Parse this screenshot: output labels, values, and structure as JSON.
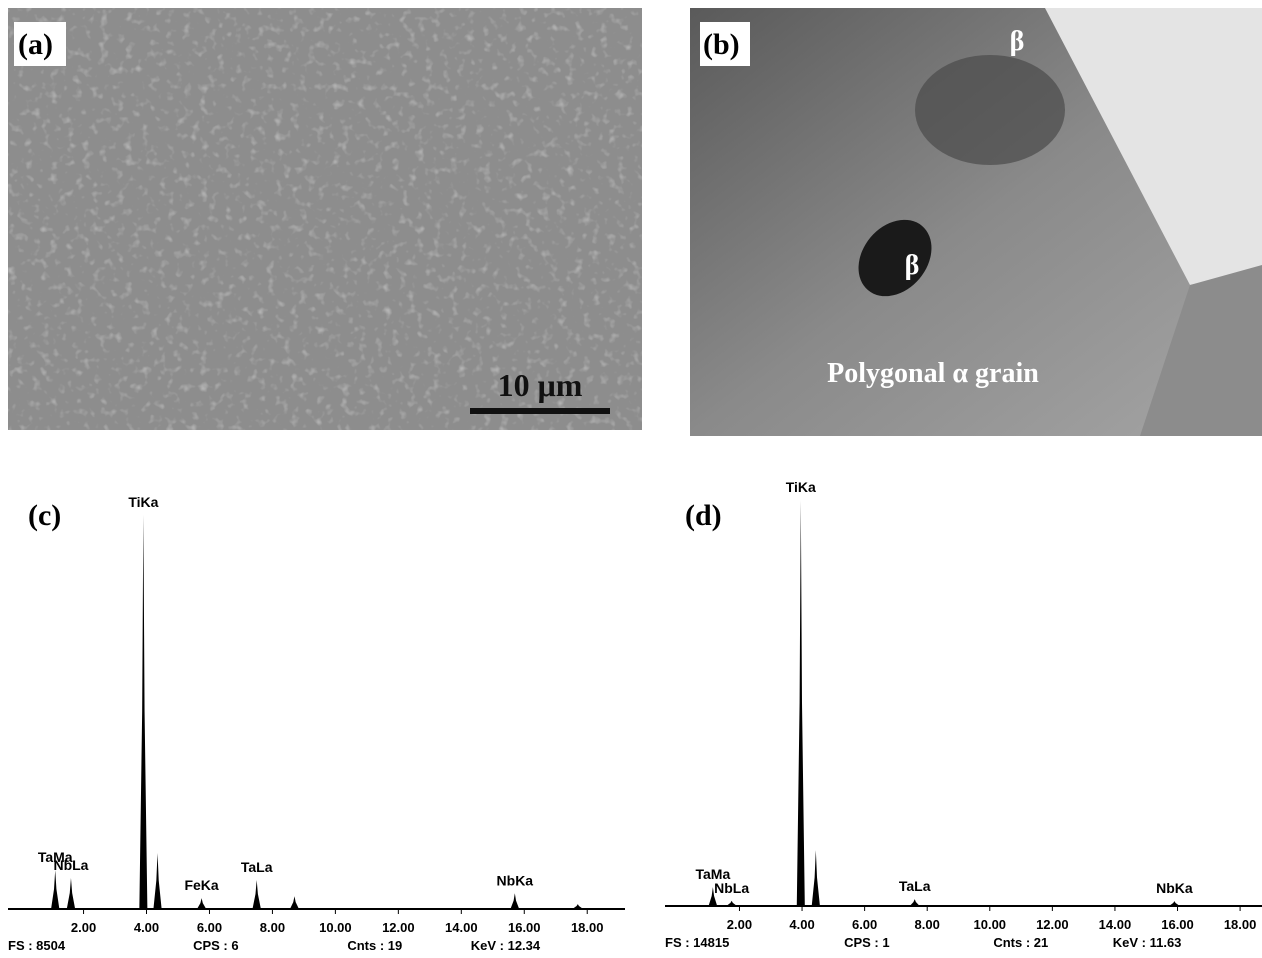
{
  "images": [
    {
      "label": "(a)",
      "scale_bar": "10 μm"
    },
    {
      "label": "(b)",
      "annotations": [
        "β",
        "β",
        "Polygonal α grain"
      ]
    }
  ],
  "chart_data": [
    {
      "type": "spectrum",
      "label": "(c)",
      "color": "#000000",
      "xlim": [
        -0.4,
        19.2
      ],
      "ylim": [
        0,
        8504
      ],
      "xticks": [
        {
          "value": 2,
          "label": "2.00"
        },
        {
          "value": 4,
          "label": "4.00"
        },
        {
          "value": 6,
          "label": "6.00"
        },
        {
          "value": 8,
          "label": "8.00"
        },
        {
          "value": 10,
          "label": "10.00"
        },
        {
          "value": 12,
          "label": "12.00"
        },
        {
          "value": 14,
          "label": "14.00"
        },
        {
          "value": 16,
          "label": "16.00"
        },
        {
          "value": 18,
          "label": "18.00"
        }
      ],
      "peaks": [
        {
          "label": "TaMa",
          "x": 1.1,
          "value": 770
        },
        {
          "label": "NbLa",
          "x": 1.6,
          "value": 610
        },
        {
          "label": "TiKa",
          "x": 3.9,
          "value": 8000
        },
        {
          "label": null,
          "x": 4.35,
          "value": 1120
        },
        {
          "label": "FeKa",
          "x": 5.75,
          "value": 200
        },
        {
          "label": "TaLa",
          "x": 7.5,
          "value": 570
        },
        {
          "label": null,
          "x": 8.7,
          "value": 240
        },
        {
          "label": "NbKa",
          "x": 15.7,
          "value": 300
        },
        {
          "label": null,
          "x": 17.7,
          "value": 80
        }
      ],
      "footer": [
        "FS : 8504",
        "CPS : 6",
        "Cnts : 19",
        "KeV : 12.34"
      ]
    },
    {
      "type": "spectrum",
      "label": "(d)",
      "color": "#000000",
      "xlim": [
        -0.38,
        18.7
      ],
      "ylim": [
        0,
        14815
      ],
      "xticks": [
        {
          "value": 2,
          "label": "2.00"
        },
        {
          "value": 4,
          "label": "4.00"
        },
        {
          "value": 6,
          "label": "6.00"
        },
        {
          "value": 8,
          "label": "8.00"
        },
        {
          "value": 10,
          "label": "10.00"
        },
        {
          "value": 12,
          "label": "12.00"
        },
        {
          "value": 14,
          "label": "14.00"
        },
        {
          "value": 16,
          "label": "16.00"
        },
        {
          "value": 18,
          "label": "18.00"
        }
      ],
      "peaks": [
        {
          "label": "TaMa",
          "x": 1.15,
          "value": 640
        },
        {
          "label": "NbLa",
          "x": 1.75,
          "value": 150
        },
        {
          "label": "TiKa",
          "x": 3.96,
          "value": 14450
        },
        {
          "label": null,
          "x": 4.44,
          "value": 1960
        },
        {
          "label": "TaLa",
          "x": 7.6,
          "value": 210
        },
        {
          "label": "NbKa",
          "x": 15.9,
          "value": 140
        }
      ],
      "footer": [
        "FS : 14815",
        "CPS : 1",
        "Cnts : 21",
        "KeV : 11.63"
      ]
    }
  ]
}
